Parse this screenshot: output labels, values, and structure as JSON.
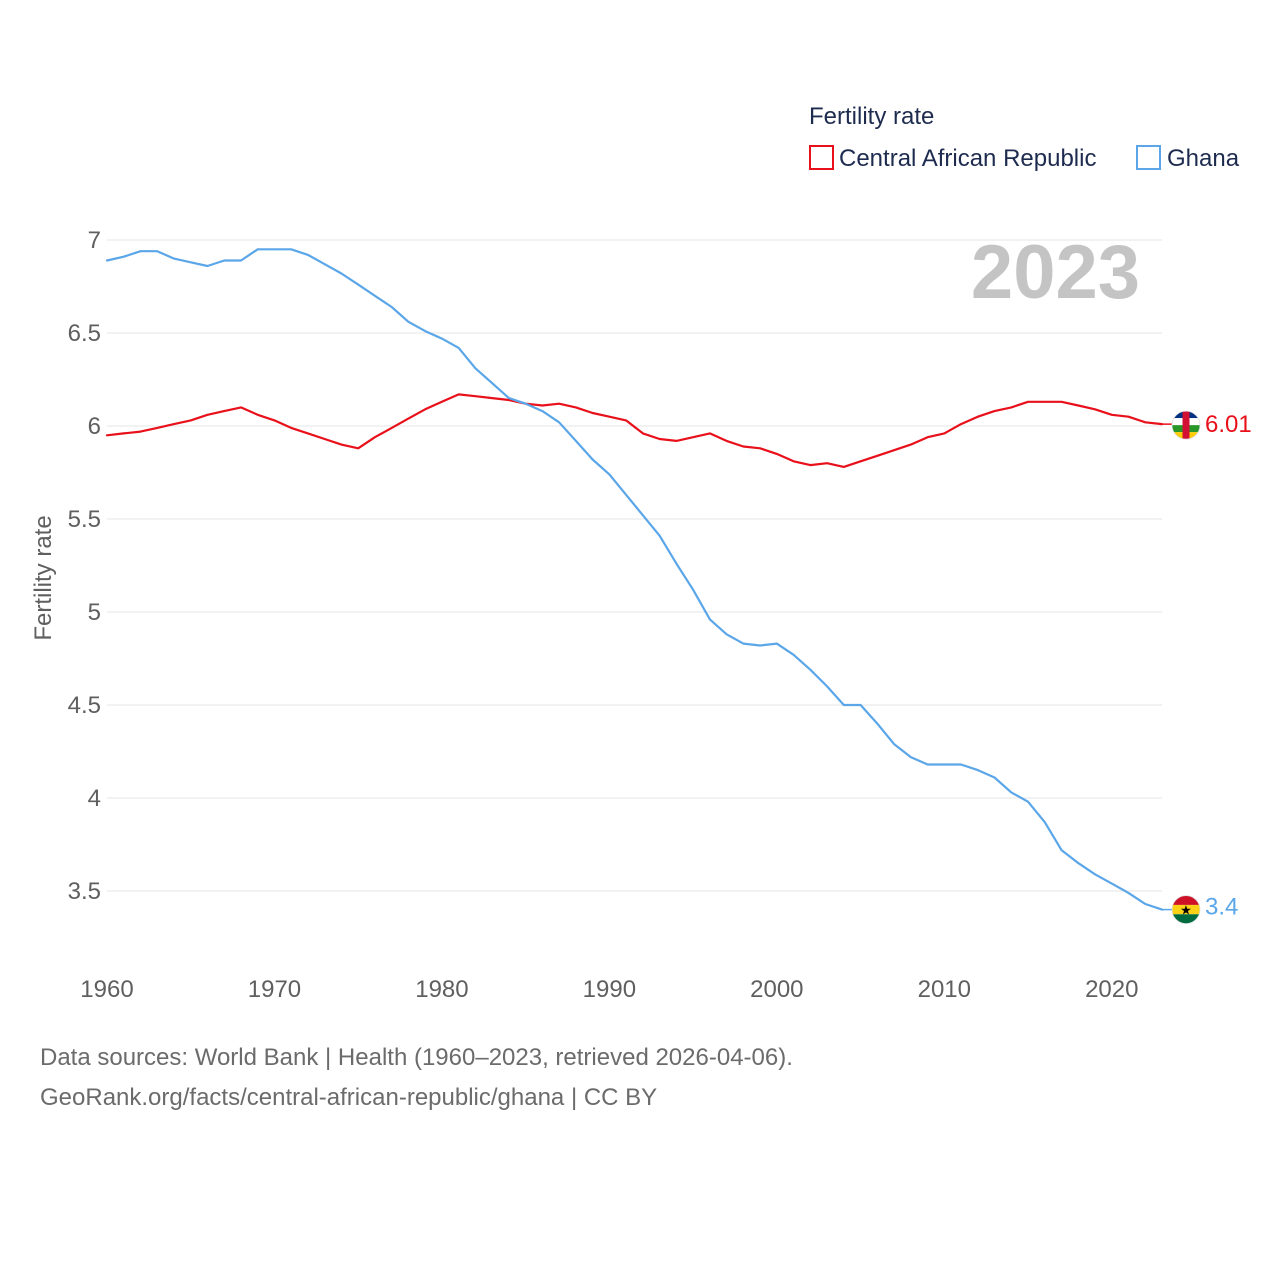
{
  "chart_data": {
    "type": "line",
    "legend_title": "Fertility rate",
    "ylabel": "Fertility rate",
    "xlabel": "",
    "current_year_label": "2023",
    "xlim": [
      1960,
      2023
    ],
    "ylim": [
      3.3,
      7.1
    ],
    "x_ticks": [
      1960,
      1970,
      1980,
      1990,
      2000,
      2010,
      2020
    ],
    "y_ticks": [
      3.5,
      4,
      4.5,
      5,
      5.5,
      6,
      6.5,
      7
    ],
    "legend_position": "top-right",
    "x": [
      1960,
      1961,
      1962,
      1963,
      1964,
      1965,
      1966,
      1967,
      1968,
      1969,
      1970,
      1971,
      1972,
      1973,
      1974,
      1975,
      1976,
      1977,
      1978,
      1979,
      1980,
      1981,
      1982,
      1983,
      1984,
      1985,
      1986,
      1987,
      1988,
      1989,
      1990,
      1991,
      1992,
      1993,
      1994,
      1995,
      1996,
      1997,
      1998,
      1999,
      2000,
      2001,
      2002,
      2003,
      2004,
      2005,
      2006,
      2007,
      2008,
      2009,
      2010,
      2011,
      2012,
      2013,
      2014,
      2015,
      2016,
      2017,
      2018,
      2019,
      2020,
      2021,
      2022,
      2023
    ],
    "series": [
      {
        "name": "Central African Republic",
        "color": "#e8101a",
        "end_label": "6.01",
        "values": [
          5.95,
          5.96,
          5.97,
          5.99,
          6.01,
          6.03,
          6.06,
          6.08,
          6.1,
          6.06,
          6.03,
          5.99,
          5.96,
          5.93,
          5.9,
          5.88,
          5.94,
          5.99,
          6.04,
          6.09,
          6.13,
          6.17,
          6.16,
          6.15,
          6.14,
          6.12,
          6.11,
          6.12,
          6.1,
          6.07,
          6.05,
          6.03,
          5.96,
          5.93,
          5.92,
          5.94,
          5.96,
          5.92,
          5.89,
          5.88,
          5.85,
          5.81,
          5.79,
          5.8,
          5.78,
          5.81,
          5.84,
          5.87,
          5.9,
          5.94,
          5.96,
          6.01,
          6.05,
          6.08,
          6.1,
          6.13,
          6.13,
          6.13,
          6.11,
          6.09,
          6.06,
          6.05,
          6.02,
          6.01
        ]
      },
      {
        "name": "Ghana",
        "color": "#5aa6e8",
        "end_label": "3.4",
        "values": [
          6.89,
          6.91,
          6.94,
          6.94,
          6.9,
          6.88,
          6.86,
          6.89,
          6.89,
          6.95,
          6.95,
          6.95,
          6.92,
          6.87,
          6.82,
          6.76,
          6.7,
          6.64,
          6.56,
          6.51,
          6.47,
          6.42,
          6.31,
          6.23,
          6.15,
          6.12,
          6.08,
          6.02,
          5.92,
          5.82,
          5.74,
          5.63,
          5.52,
          5.41,
          5.26,
          5.12,
          4.96,
          4.88,
          4.83,
          4.82,
          4.83,
          4.77,
          4.69,
          4.6,
          4.5,
          4.5,
          4.4,
          4.29,
          4.22,
          4.18,
          4.18,
          4.18,
          4.15,
          4.11,
          4.03,
          3.98,
          3.87,
          3.72,
          3.65,
          3.59,
          3.54,
          3.49,
          3.43,
          3.4
        ]
      }
    ]
  },
  "flags": {
    "car": {
      "colors": [
        "#003082",
        "#ffffff",
        "#289728",
        "#ffce00",
        "#d21034"
      ]
    },
    "ghana": {
      "colors": [
        "#ce1126",
        "#fcd116",
        "#006b3f",
        "#000000"
      ],
      "star": "★"
    }
  },
  "source": {
    "line1": "Data sources: World Bank | Health (1960–2023, retrieved 2026-04-06).",
    "line2": "GeoRank.org/facts/central-african-republic/ghana | CC BY"
  }
}
